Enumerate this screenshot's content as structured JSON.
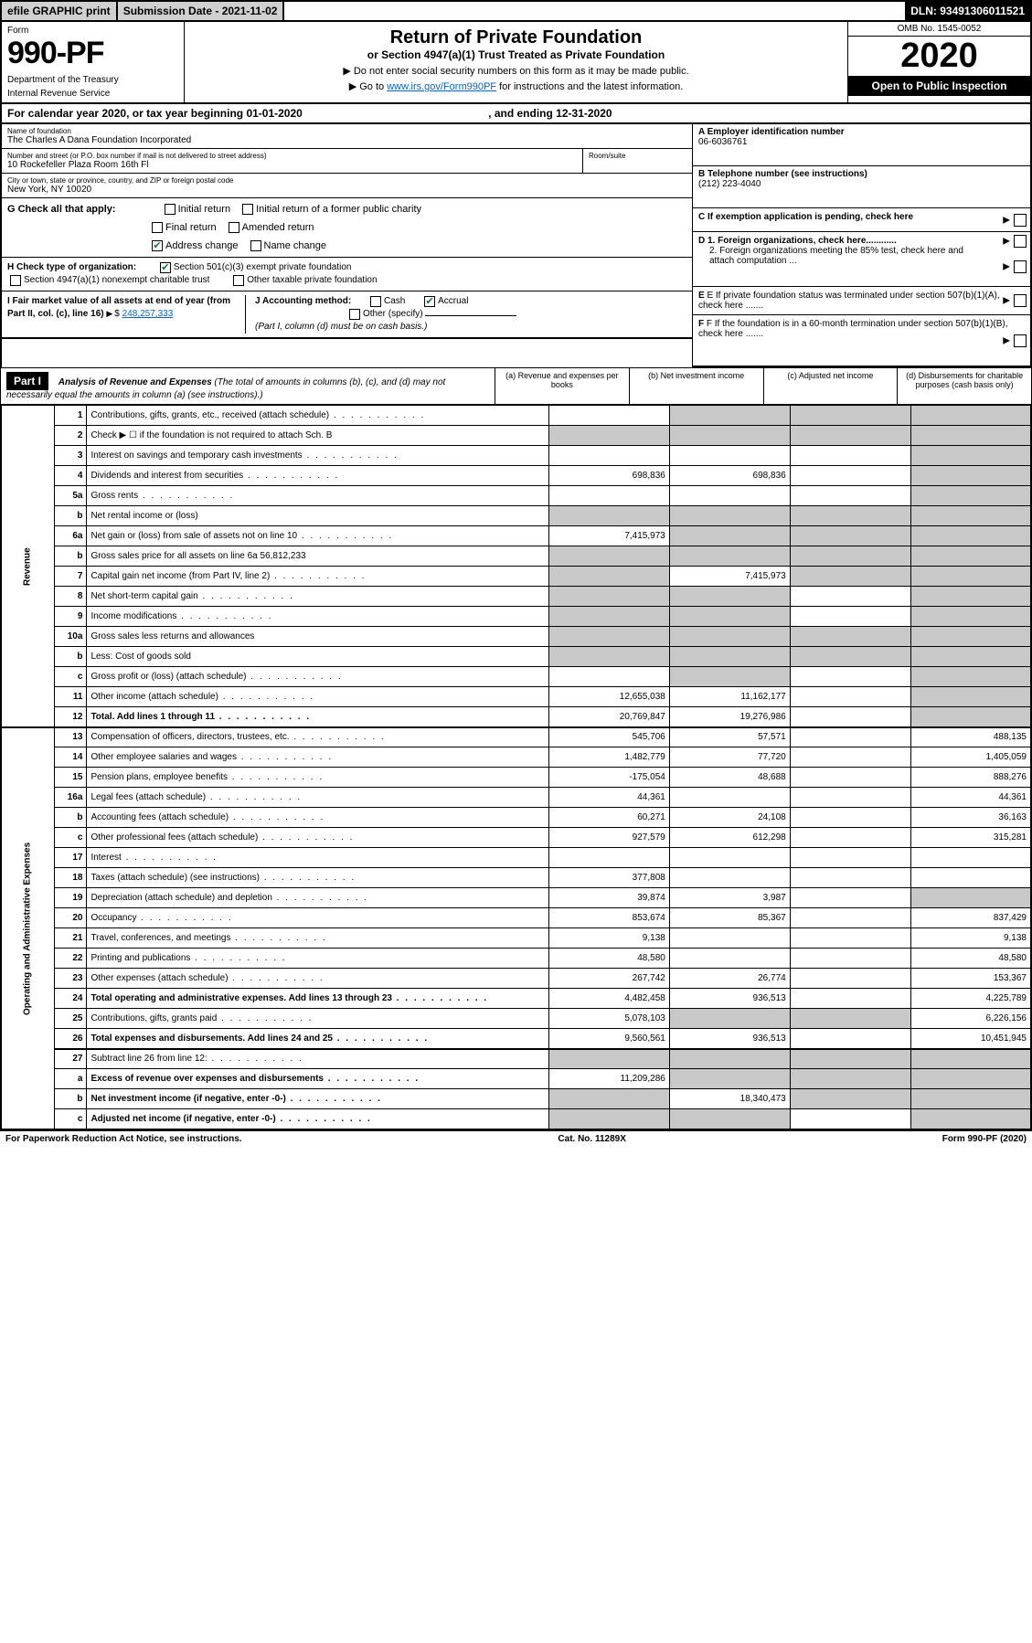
{
  "top": {
    "efile": "efile GRAPHIC print",
    "submission": "Submission Date - 2021-11-02",
    "dln": "DLN: 93491306011521"
  },
  "header": {
    "form_label": "Form",
    "form_no": "990-PF",
    "dept": "Department of the Treasury",
    "irs": "Internal Revenue Service",
    "title": "Return of Private Foundation",
    "subtitle": "or Section 4947(a)(1) Trust Treated as Private Foundation",
    "note1": "▶ Do not enter social security numbers on this form as it may be made public.",
    "note2_pre": "▶ Go to ",
    "note2_link": "www.irs.gov/Form990PF",
    "note2_post": " for instructions and the latest information.",
    "omb": "OMB No. 1545-0052",
    "year": "2020",
    "open": "Open to Public Inspection"
  },
  "calendar": {
    "text": "For calendar year 2020, or tax year beginning 01-01-2020",
    "ending": ", and ending 12-31-2020"
  },
  "foundation": {
    "name_label": "Name of foundation",
    "name": "The Charles A Dana Foundation Incorporated",
    "addr_label": "Number and street (or P.O. box number if mail is not delivered to street address)",
    "addr": "10 Rockefeller Plaza Room 16th Fl",
    "room_label": "Room/suite",
    "city_label": "City or town, state or province, country, and ZIP or foreign postal code",
    "city": "New York, NY  10020",
    "ein_label": "A Employer identification number",
    "ein": "06-6036761",
    "tel_label": "B Telephone number (see instructions)",
    "tel": "(212) 223-4040",
    "c": "C If exemption application is pending, check here",
    "d1": "D 1. Foreign organizations, check here............",
    "d2": "2. Foreign organizations meeting the 85% test, check here and attach computation ...",
    "e": "E If private foundation status was terminated under section 507(b)(1)(A), check here .......",
    "f": "F If the foundation is in a 60-month termination under section 507(b)(1)(B), check here .......",
    "g": "G Check all that apply:",
    "g_opts": {
      "initial": "Initial return",
      "initial_former": "Initial return of a former public charity",
      "final": "Final return",
      "amended": "Amended return",
      "address": "Address change",
      "name": "Name change"
    },
    "h": "H Check type of organization:",
    "h_501": "Section 501(c)(3) exempt private foundation",
    "h_4947": "Section 4947(a)(1) nonexempt charitable trust",
    "h_other": "Other taxable private foundation",
    "i": "I Fair market value of all assets at end of year (from Part II, col. (c), line 16)",
    "i_val": "248,257,333",
    "j": "J Accounting method:",
    "j_cash": "Cash",
    "j_accrual": "Accrual",
    "j_other": "Other (specify)",
    "j_note": "(Part I, column (d) must be on cash basis.)"
  },
  "part1": {
    "label": "Part I",
    "title": "Analysis of Revenue and Expenses",
    "subtitle": "(The total of amounts in columns (b), (c), and (d) may not necessarily equal the amounts in column (a) (see instructions).)",
    "col_a": "(a) Revenue and expenses per books",
    "col_b": "(b) Net investment income",
    "col_c": "(c) Adjusted net income",
    "col_d": "(d) Disbursements for charitable purposes (cash basis only)"
  },
  "side": {
    "rev": "Revenue",
    "exp": "Operating and Administrative Expenses"
  },
  "rows": [
    {
      "n": "1",
      "d": "Contributions, gifts, grants, etc., received (attach schedule)",
      "a": "",
      "b": "shade",
      "c": "shade",
      "dd": "shade"
    },
    {
      "n": "2",
      "d": "Check ▶ ☐ if the foundation is not required to attach Sch. B",
      "a": "shade",
      "b": "shade",
      "c": "shade",
      "dd": "shade",
      "dotless": true
    },
    {
      "n": "3",
      "d": "Interest on savings and temporary cash investments",
      "a": "",
      "b": "",
      "c": "",
      "dd": "shade"
    },
    {
      "n": "4",
      "d": "Dividends and interest from securities",
      "a": "698,836",
      "b": "698,836",
      "c": "",
      "dd": "shade"
    },
    {
      "n": "5a",
      "d": "Gross rents",
      "a": "",
      "b": "",
      "c": "",
      "dd": "shade"
    },
    {
      "n": "b",
      "d": "Net rental income or (loss)",
      "a": "shade",
      "b": "shade",
      "c": "shade",
      "dd": "shade",
      "hasblank": true
    },
    {
      "n": "6a",
      "d": "Net gain or (loss) from sale of assets not on line 10",
      "a": "7,415,973",
      "b": "shade",
      "c": "shade",
      "dd": "shade"
    },
    {
      "n": "b",
      "d": "Gross sales price for all assets on line 6a",
      "a": "shade",
      "b": "shade",
      "c": "shade",
      "dd": "shade",
      "inline": "56,812,233"
    },
    {
      "n": "7",
      "d": "Capital gain net income (from Part IV, line 2)",
      "a": "shade",
      "b": "7,415,973",
      "c": "shade",
      "dd": "shade"
    },
    {
      "n": "8",
      "d": "Net short-term capital gain",
      "a": "shade",
      "b": "shade",
      "c": "",
      "dd": "shade"
    },
    {
      "n": "9",
      "d": "Income modifications",
      "a": "shade",
      "b": "shade",
      "c": "",
      "dd": "shade"
    },
    {
      "n": "10a",
      "d": "Gross sales less returns and allowances",
      "a": "shade",
      "b": "shade",
      "c": "shade",
      "dd": "shade",
      "hasblank": true
    },
    {
      "n": "b",
      "d": "Less: Cost of goods sold",
      "a": "shade",
      "b": "shade",
      "c": "shade",
      "dd": "shade",
      "hasblank": true
    },
    {
      "n": "c",
      "d": "Gross profit or (loss) (attach schedule)",
      "a": "",
      "b": "shade",
      "c": "",
      "dd": "shade"
    },
    {
      "n": "11",
      "d": "Other income (attach schedule)",
      "a": "12,655,038",
      "b": "11,162,177",
      "c": "",
      "dd": "shade"
    },
    {
      "n": "12",
      "d": "Total. Add lines 1 through 11",
      "a": "20,769,847",
      "b": "19,276,986",
      "c": "",
      "dd": "shade",
      "bold": true,
      "b2": true
    },
    {
      "n": "13",
      "d": "Compensation of officers, directors, trustees, etc.",
      "a": "545,706",
      "b": "57,571",
      "c": "",
      "dd": "488,135"
    },
    {
      "n": "14",
      "d": "Other employee salaries and wages",
      "a": "1,482,779",
      "b": "77,720",
      "c": "",
      "dd": "1,405,059"
    },
    {
      "n": "15",
      "d": "Pension plans, employee benefits",
      "a": "-175,054",
      "b": "48,688",
      "c": "",
      "dd": "888,276"
    },
    {
      "n": "16a",
      "d": "Legal fees (attach schedule)",
      "a": "44,361",
      "b": "",
      "c": "",
      "dd": "44,361"
    },
    {
      "n": "b",
      "d": "Accounting fees (attach schedule)",
      "a": "60,271",
      "b": "24,108",
      "c": "",
      "dd": "36,163"
    },
    {
      "n": "c",
      "d": "Other professional fees (attach schedule)",
      "a": "927,579",
      "b": "612,298",
      "c": "",
      "dd": "315,281"
    },
    {
      "n": "17",
      "d": "Interest",
      "a": "",
      "b": "",
      "c": "",
      "dd": ""
    },
    {
      "n": "18",
      "d": "Taxes (attach schedule) (see instructions)",
      "a": "377,808",
      "b": "",
      "c": "",
      "dd": ""
    },
    {
      "n": "19",
      "d": "Depreciation (attach schedule) and depletion",
      "a": "39,874",
      "b": "3,987",
      "c": "",
      "dd": "shade"
    },
    {
      "n": "20",
      "d": "Occupancy",
      "a": "853,674",
      "b": "85,367",
      "c": "",
      "dd": "837,429"
    },
    {
      "n": "21",
      "d": "Travel, conferences, and meetings",
      "a": "9,138",
      "b": "",
      "c": "",
      "dd": "9,138"
    },
    {
      "n": "22",
      "d": "Printing and publications",
      "a": "48,580",
      "b": "",
      "c": "",
      "dd": "48,580"
    },
    {
      "n": "23",
      "d": "Other expenses (attach schedule)",
      "a": "267,742",
      "b": "26,774",
      "c": "",
      "dd": "153,367"
    },
    {
      "n": "24",
      "d": "Total operating and administrative expenses. Add lines 13 through 23",
      "a": "4,482,458",
      "b": "936,513",
      "c": "",
      "dd": "4,225,789",
      "bold": true
    },
    {
      "n": "25",
      "d": "Contributions, gifts, grants paid",
      "a": "5,078,103",
      "b": "shade",
      "c": "shade",
      "dd": "6,226,156"
    },
    {
      "n": "26",
      "d": "Total expenses and disbursements. Add lines 24 and 25",
      "a": "9,560,561",
      "b": "936,513",
      "c": "",
      "dd": "10,451,945",
      "bold": true,
      "b2": true
    },
    {
      "n": "27",
      "d": "Subtract line 26 from line 12:",
      "a": "shade",
      "b": "shade",
      "c": "shade",
      "dd": "shade"
    },
    {
      "n": "a",
      "d": "Excess of revenue over expenses and disbursements",
      "a": "11,209,286",
      "b": "shade",
      "c": "shade",
      "dd": "shade",
      "bold": true
    },
    {
      "n": "b",
      "d": "Net investment income (if negative, enter -0-)",
      "a": "shade",
      "b": "18,340,473",
      "c": "shade",
      "dd": "shade",
      "bold": true
    },
    {
      "n": "c",
      "d": "Adjusted net income (if negative, enter -0-)",
      "a": "shade",
      "b": "shade",
      "c": "",
      "dd": "shade",
      "bold": true
    }
  ],
  "footer": {
    "left": "For Paperwork Reduction Act Notice, see instructions.",
    "mid": "Cat. No. 11289X",
    "right": "Form 990-PF (2020)"
  },
  "colors": {
    "shade": "#c8c8c8",
    "link": "#0066cc",
    "check": "#0a7a3a"
  }
}
